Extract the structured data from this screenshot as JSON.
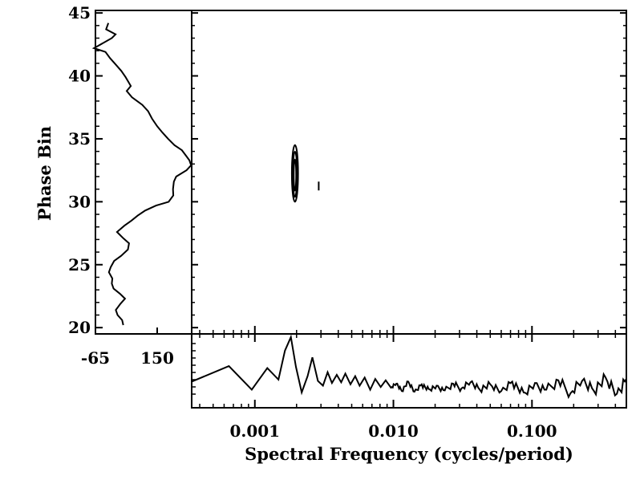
{
  "chart_data": [
    {
      "type": "line",
      "panel": "phase-profile",
      "title": "",
      "ylabel": "Phase Bin",
      "ylim": [
        19.5,
        45.2
      ],
      "y_ticks": [
        20,
        25,
        30,
        35,
        40,
        45
      ],
      "xlim": [
        -65,
        270
      ],
      "x_ticks": [
        -65,
        150
      ],
      "series": [
        {
          "y": [
            44.2,
            43.7,
            43.3,
            43.0,
            42.2,
            41.9,
            41.4,
            41.0,
            40.4,
            39.9,
            39.2,
            38.8,
            38.3,
            37.7,
            37.2,
            36.6,
            36.0,
            35.5,
            35.0,
            34.5,
            34.1,
            33.6,
            33.3,
            32.9,
            32.5,
            32.0,
            31.6,
            31.0,
            30.5,
            30.0,
            29.7,
            29.3,
            28.9,
            28.5,
            28.1,
            27.6,
            27.1,
            26.7,
            26.2,
            25.7,
            25.3,
            24.8,
            24.4,
            23.9,
            23.5,
            23.1,
            22.7,
            22.3,
            21.9,
            21.4,
            21.0,
            20.6,
            20.2
          ],
          "x": [
            -20,
            -28,
            5,
            -8,
            -70,
            -30,
            -14,
            2,
            25,
            40,
            58,
            44,
            62,
            98,
            118,
            132,
            150,
            168,
            188,
            210,
            236,
            252,
            262,
            268,
            252,
            216,
            208,
            205,
            206,
            190,
            146,
            108,
            82,
            60,
            36,
            10,
            32,
            52,
            48,
            24,
            0,
            -12,
            -18,
            -6,
            -8,
            -2,
            20,
            38,
            22,
            6,
            12,
            28,
            32
          ]
        }
      ]
    },
    {
      "type": "contour",
      "panel": "phase-frequency-map",
      "xlabel": "Spectral Frequency (cycles/period)",
      "xscale": "log",
      "xlim": [
        0.00035,
        0.48
      ],
      "ylim": [
        19.5,
        45.2
      ],
      "contours": [
        {
          "freq_min": 0.00185,
          "freq_max": 0.00205,
          "phase_min": 30.0,
          "phase_max": 34.5
        },
        {
          "freq_min": 0.00287,
          "freq_max": 0.00291,
          "phase_min": 30.9,
          "phase_max": 31.6
        }
      ]
    },
    {
      "type": "line",
      "panel": "frequency-spectrum",
      "xscale": "log",
      "xlim": [
        0.00035,
        0.48
      ],
      "x_ticks": [
        "0.001",
        "0.010",
        "0.100"
      ],
      "ylim": [
        0,
        1
      ],
      "series": [
        {
          "x": [
            0.00035,
            0.00065,
            0.00095,
            0.00123,
            0.00148,
            0.00165,
            0.00182,
            0.00198,
            0.00218,
            0.0024,
            0.0026,
            0.00285,
            0.0031,
            0.00335,
            0.0036,
            0.0039,
            0.0042,
            0.0045,
            0.0049,
            0.0053,
            0.0057,
            0.0062,
            0.0068,
            0.0074,
            0.0081,
            0.0088,
            0.0096,
            0.0105,
            0.0115,
            0.0128,
            0.0142,
            0.016,
            0.018,
            0.0205,
            0.0235,
            0.027,
            0.031,
            0.036,
            0.042,
            0.05,
            0.06,
            0.072,
            0.087,
            0.105,
            0.127,
            0.155,
            0.19,
            0.23,
            0.28,
            0.34,
            0.41,
            0.48
          ],
          "y": [
            0.34,
            0.57,
            0.22,
            0.54,
            0.37,
            0.8,
            1.0,
            0.56,
            0.18,
            0.42,
            0.7,
            0.35,
            0.28,
            0.48,
            0.32,
            0.44,
            0.33,
            0.46,
            0.3,
            0.42,
            0.28,
            0.4,
            0.22,
            0.38,
            0.26,
            0.36,
            0.25,
            0.31,
            0.2,
            0.34,
            0.19,
            0.3,
            0.23,
            0.28,
            0.21,
            0.31,
            0.24,
            0.33,
            0.22,
            0.3,
            0.2,
            0.34,
            0.18,
            0.32,
            0.22,
            0.36,
            0.17,
            0.35,
            0.2,
            0.4,
            0.16,
            0.38
          ]
        }
      ]
    }
  ]
}
